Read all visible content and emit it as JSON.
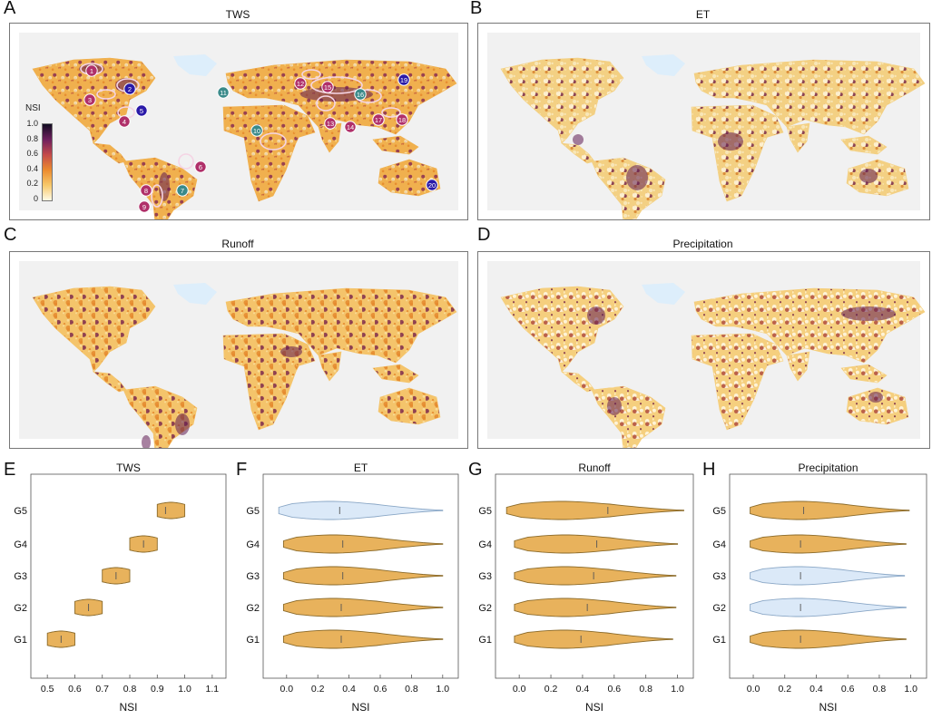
{
  "maps": [
    {
      "letter": "A",
      "title": "TWS",
      "id": "tws"
    },
    {
      "letter": "B",
      "title": "ET",
      "id": "et"
    },
    {
      "letter": "C",
      "title": "Runoff",
      "id": "runoff"
    },
    {
      "letter": "D",
      "title": "Precipitation",
      "id": "precip"
    }
  ],
  "legend": {
    "title": "NSI",
    "ticks": [
      "1.0",
      "0.8",
      "0.6",
      "0.4",
      "0.2",
      "0"
    ],
    "colors": [
      "#fffbe6",
      "#f7c86a",
      "#eb8a2e",
      "#c44a4a",
      "#6e1f5e",
      "#120d22"
    ]
  },
  "markers": [
    {
      "n": "1",
      "color": "#b0306a"
    },
    {
      "n": "2",
      "color": "#2a1aa8"
    },
    {
      "n": "3",
      "color": "#b0306a"
    },
    {
      "n": "4",
      "color": "#b0306a"
    },
    {
      "n": "5",
      "color": "#2a1aa8"
    },
    {
      "n": "6",
      "color": "#b0306a"
    },
    {
      "n": "7",
      "color": "#3a8a8a"
    },
    {
      "n": "8",
      "color": "#b0306a"
    },
    {
      "n": "9",
      "color": "#b0306a"
    },
    {
      "n": "10",
      "color": "#3a8a8a"
    },
    {
      "n": "11",
      "color": "#3a8a8a"
    },
    {
      "n": "12",
      "color": "#b0306a"
    },
    {
      "n": "13",
      "color": "#b0306a"
    },
    {
      "n": "14",
      "color": "#b0306a"
    },
    {
      "n": "15",
      "color": "#b0306a"
    },
    {
      "n": "16",
      "color": "#3a8a8a"
    },
    {
      "n": "17",
      "color": "#b0306a"
    },
    {
      "n": "18",
      "color": "#b0306a"
    },
    {
      "n": "19",
      "color": "#2a1aa8"
    },
    {
      "n": "20",
      "color": "#2a1aa8"
    }
  ],
  "chart_data": [
    {
      "type": "violin",
      "letter": "E",
      "title": "TWS",
      "xlabel": "NSI",
      "categories": [
        "G1",
        "G2",
        "G3",
        "G4",
        "G5"
      ],
      "xlim": [
        0.44,
        1.15
      ],
      "xticks": [
        "0.5",
        "0.6",
        "0.7",
        "0.8",
        "0.9",
        "1.0",
        "1.1"
      ],
      "series": [
        {
          "name": "G1",
          "min": 0.5,
          "max": 0.6,
          "median": 0.55,
          "color": "orange"
        },
        {
          "name": "G2",
          "min": 0.6,
          "max": 0.7,
          "median": 0.65,
          "color": "orange"
        },
        {
          "name": "G3",
          "min": 0.7,
          "max": 0.8,
          "median": 0.75,
          "color": "orange"
        },
        {
          "name": "G4",
          "min": 0.8,
          "max": 0.9,
          "median": 0.85,
          "color": "orange"
        },
        {
          "name": "G5",
          "min": 0.9,
          "max": 1.0,
          "median": 0.93,
          "color": "orange"
        }
      ]
    },
    {
      "type": "violin",
      "letter": "F",
      "title": "ET",
      "xlabel": "NSI",
      "categories": [
        "G1",
        "G2",
        "G3",
        "G4",
        "G5"
      ],
      "xlim": [
        -0.15,
        1.1
      ],
      "xticks": [
        "0.0",
        "0.2",
        "0.4",
        "0.6",
        "0.8",
        "1.0"
      ],
      "series": [
        {
          "name": "G1",
          "min": -0.02,
          "max": 1.0,
          "median": 0.35,
          "color": "orange"
        },
        {
          "name": "G2",
          "min": -0.02,
          "max": 1.0,
          "median": 0.35,
          "color": "orange"
        },
        {
          "name": "G3",
          "min": -0.02,
          "max": 1.0,
          "median": 0.36,
          "color": "orange"
        },
        {
          "name": "G4",
          "min": -0.02,
          "max": 1.0,
          "median": 0.36,
          "color": "orange"
        },
        {
          "name": "G5",
          "min": -0.05,
          "max": 1.0,
          "median": 0.34,
          "color": "blue"
        }
      ]
    },
    {
      "type": "violin",
      "letter": "G",
      "title": "Runoff",
      "xlabel": "NSI",
      "categories": [
        "G1",
        "G2",
        "G3",
        "G4",
        "G5"
      ],
      "xlim": [
        -0.15,
        1.1
      ],
      "xticks": [
        "0.0",
        "0.2",
        "0.4",
        "0.6",
        "0.8",
        "1.0"
      ],
      "series": [
        {
          "name": "G1",
          "min": -0.03,
          "max": 0.97,
          "median": 0.39,
          "color": "orange"
        },
        {
          "name": "G2",
          "min": -0.03,
          "max": 0.99,
          "median": 0.43,
          "color": "orange"
        },
        {
          "name": "G3",
          "min": -0.03,
          "max": 0.99,
          "median": 0.47,
          "color": "orange"
        },
        {
          "name": "G4",
          "min": -0.03,
          "max": 1.0,
          "median": 0.49,
          "color": "orange"
        },
        {
          "name": "G5",
          "min": -0.08,
          "max": 1.04,
          "median": 0.56,
          "color": "orange"
        }
      ]
    },
    {
      "type": "violin",
      "letter": "H",
      "title": "Precipitation",
      "xlabel": "NSI",
      "categories": [
        "G1",
        "G2",
        "G3",
        "G4",
        "G5"
      ],
      "xlim": [
        -0.15,
        1.1
      ],
      "xticks": [
        "0.0",
        "0.2",
        "0.4",
        "0.6",
        "0.8",
        "1.0"
      ],
      "series": [
        {
          "name": "G1",
          "min": -0.02,
          "max": 0.97,
          "median": 0.3,
          "color": "orange"
        },
        {
          "name": "G2",
          "min": -0.02,
          "max": 0.97,
          "median": 0.3,
          "color": "blue"
        },
        {
          "name": "G3",
          "min": -0.02,
          "max": 0.96,
          "median": 0.3,
          "color": "blue"
        },
        {
          "name": "G4",
          "min": -0.02,
          "max": 0.97,
          "median": 0.3,
          "color": "orange"
        },
        {
          "name": "G5",
          "min": -0.02,
          "max": 0.99,
          "median": 0.32,
          "color": "orange"
        }
      ]
    }
  ]
}
